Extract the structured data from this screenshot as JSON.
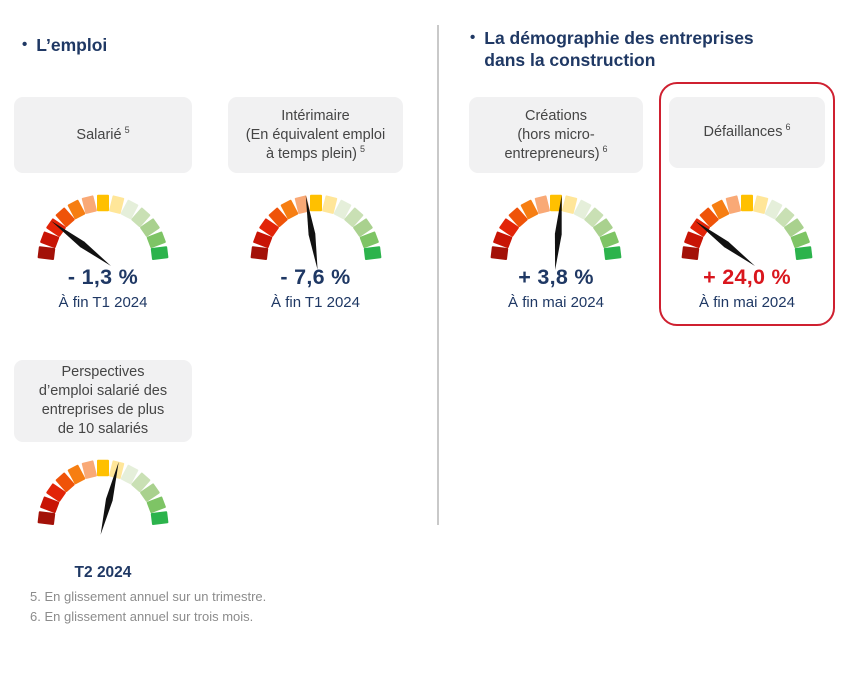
{
  "palette": {
    "navy": "#1f3864",
    "alert_red": "#d9161d",
    "highlight_border": "#cf2030",
    "card_text": "#454545",
    "divider": "#c9c9c9",
    "footnote_gray": "#8c8c8c",
    "needle": "#111111",
    "gauge_colors": [
      "#a31108",
      "#c81405",
      "#e22408",
      "#ef5309",
      "#f67e12",
      "#f9a976",
      "#ffc000",
      "#ffe699",
      "#e5efda",
      "#c9e0b4",
      "#a9d18e",
      "#7ec465",
      "#2cb34c"
    ]
  },
  "left": {
    "bullet": "•",
    "title": "L’emploi",
    "cards": [
      {
        "id": "salarie",
        "lines": [
          "Salarié"
        ],
        "sup": "5",
        "gauge": {
          "needle_deg": 143
        },
        "value": "- 1,3 %",
        "caption": "À fin T1 2024"
      },
      {
        "id": "interimaire",
        "lines": [
          "Intérimaire",
          "(En équivalent emploi",
          "à temps plein)"
        ],
        "sup": "5",
        "gauge": {
          "needle_deg": 99
        },
        "value": "- 7,6 %",
        "caption": "À fin T1 2024"
      },
      {
        "id": "perspectives",
        "lines": [
          "Perspectives",
          "d’emploi salarié des",
          "entreprises de plus",
          "de 10 salariés"
        ],
        "sup": "",
        "gauge": {
          "needle_deg": 76
        },
        "value": "",
        "caption": "T2 2024"
      }
    ],
    "footnotes": [
      "5. En glissement annuel sur un trimestre.",
      "6. En glissement annuel sur trois mois."
    ]
  },
  "right": {
    "bullet": "•",
    "title_lines": [
      "La démographie des entreprises",
      "dans la construction"
    ],
    "cards": [
      {
        "id": "creations",
        "lines": [
          "Créations",
          "(hors micro-",
          "entrepreneurs)"
        ],
        "sup": "6",
        "gauge": {
          "needle_deg": 85
        },
        "value": "+ 3,8 %",
        "caption": "À fin mai 2024",
        "highlighted": false
      },
      {
        "id": "defaillances",
        "lines": [
          "Défaillances"
        ],
        "sup": "6",
        "gauge": {
          "needle_deg": 143
        },
        "value": "+ 24,0 %",
        "caption": "À fin mai 2024",
        "highlighted": true
      }
    ]
  },
  "chart_data": [
    {
      "type": "gauge",
      "title": "Salarié",
      "value_pct": -1.3,
      "value_label": "- 1,3 %",
      "period": "À fin T1 2024",
      "scale": "rouge (négatif, gauche) → vert (positif, droite)",
      "needle_deg": 143,
      "needle_zone": "rouge-orangé",
      "segments": 13
    },
    {
      "type": "gauge",
      "title": "Intérimaire (En équivalent emploi à temps plein)",
      "value_pct": -7.6,
      "value_label": "- 7,6 %",
      "period": "À fin T1 2024",
      "scale": "rouge (gauche) → vert (droite)",
      "needle_deg": 99,
      "needle_zone": "jaune / centre",
      "segments": 13
    },
    {
      "type": "gauge",
      "title": "Perspectives d’emploi salarié des entreprises de plus de 10 salariés",
      "value_pct": null,
      "value_label": "",
      "period": "T2 2024",
      "scale": "rouge (gauche) → vert (droite)",
      "needle_deg": 76,
      "needle_zone": "jaune pâle / centre-droit",
      "segments": 13
    },
    {
      "type": "gauge",
      "title": "Créations (hors micro-entrepreneurs)",
      "value_pct": 3.8,
      "value_label": "+ 3,8 %",
      "period": "À fin mai 2024",
      "scale": "rouge (gauche) → vert (droite)",
      "needle_deg": 85,
      "needle_zone": "jaune / centre",
      "segments": 13
    },
    {
      "type": "gauge",
      "title": "Défaillances",
      "value_pct": 24.0,
      "value_label": "+ 24,0 %",
      "period": "À fin mai 2024",
      "scale": "rouge (gauche) → vert (droite)",
      "needle_deg": 143,
      "needle_zone": "rouge-orangé",
      "segments": 13,
      "highlighted": true
    }
  ]
}
